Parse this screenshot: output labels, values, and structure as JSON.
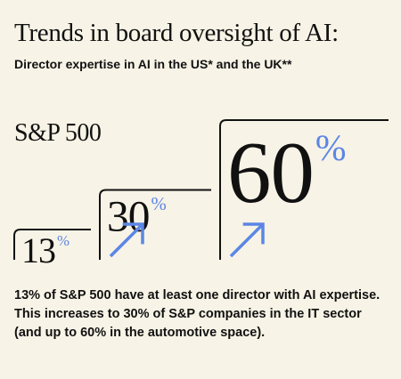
{
  "header": {
    "title": "Trends in board oversight of AI:",
    "subtitle": "Director expertise in AI in the US* and the UK**"
  },
  "index_label": "S&P 500",
  "caption": "13% of S&P 500 have at least one director with AI expertise. This increases to 30% of S&P companies in the IT sector (and up to 60% in the automotive space).",
  "colors": {
    "background": "#f7f3e6",
    "text": "#111111",
    "accent": "#5b86e5"
  },
  "chart_data": {
    "type": "bar",
    "unit": "%",
    "values": [
      13,
      30,
      60
    ],
    "labels": [
      "13",
      "30",
      "60"
    ],
    "arrow_icons": [
      false,
      true,
      true
    ]
  }
}
